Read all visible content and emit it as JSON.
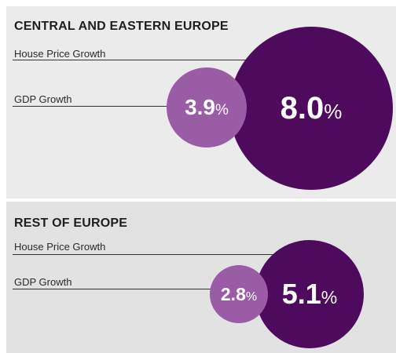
{
  "chart_data": [
    {
      "type": "bubble",
      "title": "CENTRAL AND EASTERN EUROPE",
      "categories": [
        "House Price Growth",
        "GDP Growth"
      ],
      "values": [
        8.0,
        3.9
      ],
      "unit": "%",
      "value_labels": [
        "8.0",
        "3.9"
      ],
      "colors": [
        "#4e0b5e",
        "#9a5ca5"
      ]
    },
    {
      "type": "bubble",
      "title": "REST OF EUROPE",
      "categories": [
        "House Price Growth",
        "GDP Growth"
      ],
      "values": [
        5.1,
        2.8
      ],
      "unit": "%",
      "value_labels": [
        "5.1",
        "2.8"
      ],
      "colors": [
        "#4e0b5e",
        "#9a5ca5"
      ]
    }
  ]
}
